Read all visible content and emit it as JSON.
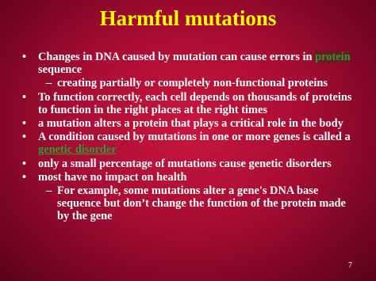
{
  "title": "Harmful mutations",
  "slide_number": 7,
  "bullets": [
    {
      "text": [
        "Changes in DNA caused by mutation can cause errors in ",
        "protein",
        " sequence"
      ],
      "sub": [
        "creating partially or completely non-functional proteins"
      ]
    },
    {
      "text": [
        "To function correctly, each cell depends on thousands of proteins to function in the right places at the right times"
      ]
    },
    {
      "text": [
        "a mutation alters a protein that plays a critical role in the body"
      ]
    },
    {
      "text": [
        "A condition caused by mutations in one or more genes is called a ",
        "genetic disorder"
      ]
    },
    {
      "text": [
        "only a small percentage of mutations cause genetic disorders"
      ]
    },
    {
      "text": [
        "most have no impact on health"
      ],
      "sub": [
        "For example, some mutations alter a gene's DNA base sequence but don’t change the function of the protein made by the gene"
      ]
    }
  ]
}
